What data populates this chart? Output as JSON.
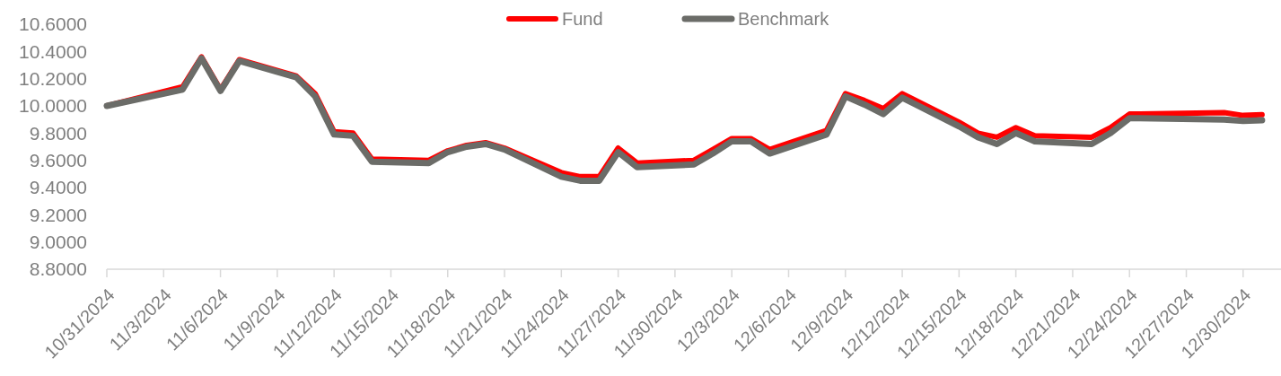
{
  "chart_data": {
    "type": "line",
    "x": [
      "2024-10-31",
      "2024-11-04",
      "2024-11-05",
      "2024-11-06",
      "2024-11-07",
      "2024-11-10",
      "2024-11-11",
      "2024-11-12",
      "2024-11-13",
      "2024-11-14",
      "2024-11-17",
      "2024-11-18",
      "2024-11-19",
      "2024-11-20",
      "2024-11-21",
      "2024-11-24",
      "2024-11-25",
      "2024-11-26",
      "2024-11-27",
      "2024-11-28",
      "2024-12-01",
      "2024-12-02",
      "2024-12-03",
      "2024-12-04",
      "2024-12-05",
      "2024-12-08",
      "2024-12-09",
      "2024-12-10",
      "2024-12-11",
      "2024-12-12",
      "2024-12-15",
      "2024-12-16",
      "2024-12-17",
      "2024-12-18",
      "2024-12-19",
      "2024-12-22",
      "2024-12-23",
      "2024-12-24",
      "2024-12-29",
      "2024-12-30",
      "2024-12-31"
    ],
    "series": [
      {
        "name": "Fund",
        "color": "#ff0000",
        "values": [
          10.0,
          10.14,
          10.36,
          10.12,
          10.34,
          10.22,
          10.09,
          9.81,
          9.8,
          9.61,
          9.6,
          9.67,
          9.71,
          9.73,
          9.69,
          9.51,
          9.48,
          9.48,
          9.69,
          9.58,
          9.6,
          9.68,
          9.76,
          9.76,
          9.68,
          9.82,
          10.09,
          10.04,
          9.98,
          10.09,
          9.88,
          9.8,
          9.77,
          9.84,
          9.78,
          9.77,
          9.84,
          9.94,
          9.95,
          9.93,
          9.935
        ]
      },
      {
        "name": "Benchmark",
        "color": "#6b6c68",
        "values": [
          10.0,
          10.12,
          10.35,
          10.11,
          10.33,
          10.21,
          10.07,
          9.79,
          9.78,
          9.59,
          9.58,
          9.66,
          9.7,
          9.72,
          9.68,
          9.48,
          9.45,
          9.45,
          9.66,
          9.55,
          9.57,
          9.65,
          9.74,
          9.74,
          9.65,
          9.79,
          10.07,
          10.01,
          9.94,
          10.06,
          9.85,
          9.77,
          9.72,
          9.8,
          9.74,
          9.72,
          9.8,
          9.91,
          9.9,
          9.89,
          9.895
        ]
      }
    ],
    "xlim": [
      "2024-10-31",
      "2025-01-01"
    ],
    "xticks": [
      {
        "value": "2024-10-31",
        "label": "10/31/2024"
      },
      {
        "value": "2024-11-03",
        "label": "11/3/2024"
      },
      {
        "value": "2024-11-06",
        "label": "11/6/2024"
      },
      {
        "value": "2024-11-09",
        "label": "11/9/2024"
      },
      {
        "value": "2024-11-12",
        "label": "11/12/2024"
      },
      {
        "value": "2024-11-15",
        "label": "11/15/2024"
      },
      {
        "value": "2024-11-18",
        "label": "11/18/2024"
      },
      {
        "value": "2024-11-21",
        "label": "11/21/2024"
      },
      {
        "value": "2024-11-24",
        "label": "11/24/2024"
      },
      {
        "value": "2024-11-27",
        "label": "11/27/2024"
      },
      {
        "value": "2024-11-30",
        "label": "11/30/2024"
      },
      {
        "value": "2024-12-03",
        "label": "12/3/2024"
      },
      {
        "value": "2024-12-06",
        "label": "12/6/2024"
      },
      {
        "value": "2024-12-09",
        "label": "12/9/2024"
      },
      {
        "value": "2024-12-12",
        "label": "12/12/2024"
      },
      {
        "value": "2024-12-15",
        "label": "12/15/2024"
      },
      {
        "value": "2024-12-18",
        "label": "12/18/2024"
      },
      {
        "value": "2024-12-21",
        "label": "12/21/2024"
      },
      {
        "value": "2024-12-24",
        "label": "12/24/2024"
      },
      {
        "value": "2024-12-27",
        "label": "12/27/2024"
      },
      {
        "value": "2024-12-30",
        "label": "12/30/2024"
      }
    ],
    "ylim": [
      8.8,
      10.6
    ],
    "yticks": [
      {
        "value": 8.8,
        "label": "8.8000"
      },
      {
        "value": 9.0,
        "label": "9.0000"
      },
      {
        "value": 9.2,
        "label": "9.2000"
      },
      {
        "value": 9.4,
        "label": "9.4000"
      },
      {
        "value": 9.6,
        "label": "9.6000"
      },
      {
        "value": 9.8,
        "label": "9.8000"
      },
      {
        "value": 10.0,
        "label": "10.0000"
      },
      {
        "value": 10.2,
        "label": "10.2000"
      },
      {
        "value": 10.4,
        "label": "10.4000"
      },
      {
        "value": 10.6,
        "label": "10.6000"
      }
    ],
    "legend": "top",
    "grid": false,
    "marker": "none",
    "line_style": "solid"
  }
}
